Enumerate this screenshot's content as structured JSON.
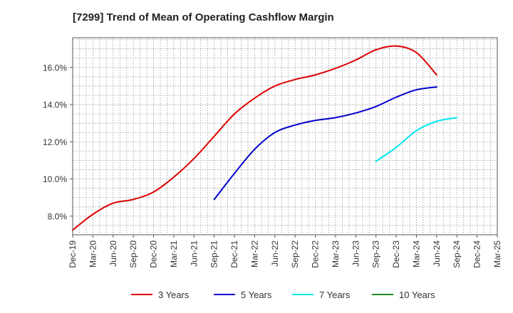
{
  "page": {
    "title": "[7299]  Trend of Mean of Operating Cashflow Margin"
  },
  "chart_data": {
    "type": "line",
    "title": "[7299]  Trend of Mean of Operating Cashflow Margin",
    "xlabel": "",
    "ylabel": "",
    "x_categories": [
      "Dec-19",
      "Mar-20",
      "Jun-20",
      "Sep-20",
      "Dec-20",
      "Mar-21",
      "Jun-21",
      "Sep-21",
      "Dec-21",
      "Mar-22",
      "Jun-22",
      "Sep-22",
      "Dec-22",
      "Mar-23",
      "Jun-23",
      "Sep-23",
      "Dec-23",
      "Mar-24",
      "Jun-24",
      "Sep-24",
      "Dec-24",
      "Mar-25"
    ],
    "y_ticks": [
      8.0,
      10.0,
      12.0,
      14.0,
      16.0
    ],
    "y_tick_labels": [
      "8.0%",
      "10.0%",
      "12.0%",
      "14.0%",
      "16.0%"
    ],
    "ylim": [
      7.0,
      17.6
    ],
    "grid": true,
    "legend_position": "bottom",
    "series": [
      {
        "name": "3 Years",
        "color": "#dd0000",
        "values": [
          7.25,
          8.1,
          8.7,
          8.9,
          9.3,
          10.1,
          11.1,
          12.3,
          13.5,
          14.35,
          15.0,
          15.35,
          15.6,
          15.95,
          16.4,
          16.95,
          17.15,
          16.8,
          15.6
        ]
      },
      {
        "name": "5 Years",
        "color": "#0000cc",
        "start_index": 7,
        "values": [
          8.9,
          10.3,
          11.6,
          12.5,
          12.9,
          13.15,
          13.3,
          13.55,
          13.9,
          14.4,
          14.8,
          14.95
        ]
      },
      {
        "name": "7 Years",
        "color": "#00e5ee",
        "start_index": 15,
        "values": [
          10.95,
          11.7,
          12.6,
          13.1,
          13.3
        ]
      },
      {
        "name": "10 Years",
        "color": "#228b22",
        "values": []
      }
    ]
  }
}
